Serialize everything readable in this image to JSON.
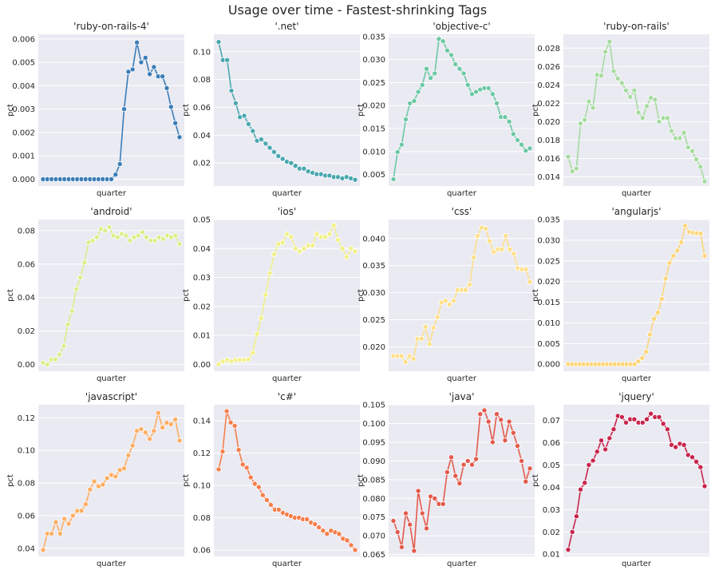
{
  "title": "Usage over time - Fastest-shrinking Tags",
  "chart_data": [
    {
      "type": "line",
      "title": "'ruby-on-rails-4'",
      "xlabel": "quarter",
      "ylabel": "pct",
      "color": "#3a7db8",
      "ylim": [
        -0.00029,
        0.0062
      ],
      "yticks": [
        0,
        0.001,
        0.002,
        0.003,
        0.004,
        0.005,
        0.006
      ],
      "ytick_labels": [
        "0.000",
        "0.001",
        "0.002",
        "0.003",
        "0.004",
        "0.005",
        "0.006"
      ],
      "values": [
        0,
        0,
        0,
        0,
        0,
        0,
        0,
        0,
        0,
        0,
        0,
        0,
        0,
        0,
        0,
        0,
        0,
        0.0002,
        0.00065,
        0.003,
        0.0046,
        0.0047,
        0.00585,
        0.005,
        0.0052,
        0.0045,
        0.0048,
        0.0044,
        0.0044,
        0.0039,
        0.0031,
        0.0024,
        0.0018
      ]
    },
    {
      "type": "line",
      "title": "'.net'",
      "xlabel": "quarter",
      "ylabel": "pct",
      "color": "#4aa7b0",
      "ylim": [
        0.0035,
        0.1125
      ],
      "yticks": [
        0.02,
        0.04,
        0.06,
        0.08,
        0.1
      ],
      "ytick_labels": [
        "0.02",
        "0.04",
        "0.06",
        "0.08",
        "0.10"
      ],
      "values": [
        0.107,
        0.094,
        0.094,
        0.072,
        0.063,
        0.053,
        0.054,
        0.048,
        0.043,
        0.036,
        0.037,
        0.034,
        0.031,
        0.028,
        0.025,
        0.023,
        0.021,
        0.02,
        0.018,
        0.016,
        0.016,
        0.014,
        0.013,
        0.012,
        0.012,
        0.011,
        0.011,
        0.01,
        0.01,
        0.009,
        0.01,
        0.009,
        0.008
      ]
    },
    {
      "type": "line",
      "title": "'objective-c'",
      "xlabel": "quarter",
      "ylabel": "pct",
      "color": "#6cc8a4",
      "ylim": [
        0.0025,
        0.0355
      ],
      "yticks": [
        0.005,
        0.01,
        0.015,
        0.02,
        0.025,
        0.03,
        0.035
      ],
      "ytick_labels": [
        "0.005",
        "0.010",
        "0.015",
        "0.020",
        "0.025",
        "0.030",
        "0.035"
      ],
      "values": [
        0.004,
        0.0099,
        0.0115,
        0.017,
        0.0205,
        0.021,
        0.023,
        0.0245,
        0.028,
        0.026,
        0.027,
        0.0345,
        0.034,
        0.032,
        0.031,
        0.029,
        0.028,
        0.027,
        0.0245,
        0.0225,
        0.023,
        0.0235,
        0.0238,
        0.0238,
        0.0225,
        0.0205,
        0.0175,
        0.0175,
        0.0165,
        0.0138,
        0.0125,
        0.0115,
        0.0102,
        0.0107
      ]
    },
    {
      "type": "line",
      "title": "'ruby-on-rails'",
      "xlabel": "quarter",
      "ylabel": "pct",
      "color": "#a6dba0",
      "ylim": [
        0.013,
        0.0295
      ],
      "yticks": [
        0.014,
        0.016,
        0.018,
        0.02,
        0.022,
        0.024,
        0.026,
        0.028
      ],
      "ytick_labels": [
        "0.014",
        "0.016",
        "0.018",
        "0.020",
        "0.022",
        "0.024",
        "0.026",
        "0.028"
      ],
      "values": [
        0.0162,
        0.0146,
        0.0149,
        0.0198,
        0.0202,
        0.0222,
        0.0215,
        0.0251,
        0.025,
        0.0276,
        0.0287,
        0.0255,
        0.0247,
        0.0242,
        0.0234,
        0.0227,
        0.0234,
        0.021,
        0.0204,
        0.0217,
        0.0226,
        0.0224,
        0.02,
        0.0204,
        0.0204,
        0.019,
        0.0182,
        0.0182,
        0.0188,
        0.0172,
        0.0168,
        0.0159,
        0.0151,
        0.0135
      ]
    },
    {
      "type": "line",
      "title": "'android'",
      "xlabel": "quarter",
      "ylabel": "pct",
      "color": "#d9ef8b",
      "ylim": [
        -0.004,
        0.0866
      ],
      "yticks": [
        0,
        0.02,
        0.04,
        0.06,
        0.08
      ],
      "ytick_labels": [
        "0.00",
        "0.02",
        "0.04",
        "0.06",
        "0.08"
      ],
      "values": [
        0.001,
        0,
        0.003,
        0.003,
        0.006,
        0.011,
        0.024,
        0.032,
        0.045,
        0.052,
        0.061,
        0.073,
        0.074,
        0.076,
        0.081,
        0.08,
        0.082,
        0.077,
        0.076,
        0.078,
        0.077,
        0.074,
        0.076,
        0.077,
        0.079,
        0.076,
        0.074,
        0.074,
        0.076,
        0.075,
        0.077,
        0.076,
        0.077,
        0.072
      ]
    },
    {
      "type": "line",
      "title": "'ios'",
      "xlabel": "quarter",
      "ylabel": "pct",
      "color": "#f1f08a",
      "ylim": [
        -0.0024,
        0.05
      ],
      "yticks": [
        0,
        0.01,
        0.02,
        0.03,
        0.04,
        0.05
      ],
      "ytick_labels": [
        "0.00",
        "0.01",
        "0.02",
        "0.03",
        "0.04",
        "0.05"
      ],
      "values": [
        0,
        0.001,
        0.0015,
        0.001,
        0.0015,
        0.0015,
        0.0015,
        0.0017,
        0.004,
        0.0105,
        0.016,
        0.024,
        0.0315,
        0.038,
        0.0415,
        0.042,
        0.045,
        0.044,
        0.04,
        0.039,
        0.04,
        0.041,
        0.041,
        0.045,
        0.044,
        0.044,
        0.045,
        0.048,
        0.043,
        0.04,
        0.037,
        0.04,
        0.039
      ]
    },
    {
      "type": "line",
      "title": "'css'",
      "xlabel": "quarter",
      "ylabel": "pct",
      "color": "#fee08b",
      "ylim": [
        0.0155,
        0.0435
      ],
      "yticks": [
        0.02,
        0.025,
        0.03,
        0.035,
        0.04
      ],
      "ytick_labels": [
        "0.020",
        "0.025",
        "0.030",
        "0.035",
        "0.040"
      ],
      "values": [
        0.0183,
        0.0183,
        0.0183,
        0.0172,
        0.0183,
        0.0178,
        0.0215,
        0.0215,
        0.0237,
        0.0205,
        0.0235,
        0.0255,
        0.0282,
        0.0285,
        0.0278,
        0.0285,
        0.0305,
        0.0305,
        0.0305,
        0.0315,
        0.0365,
        0.0405,
        0.042,
        0.0418,
        0.0395,
        0.0375,
        0.038,
        0.038,
        0.0405,
        0.038,
        0.0372,
        0.0345,
        0.0343,
        0.0343,
        0.032
      ]
    },
    {
      "type": "line",
      "title": "'angularjs'",
      "xlabel": "quarter",
      "ylabel": "pct",
      "color": "#fdd67a",
      "ylim": [
        -0.0017,
        0.035
      ],
      "yticks": [
        0,
        0.005,
        0.01,
        0.015,
        0.02,
        0.025,
        0.03,
        0.035
      ],
      "ytick_labels": [
        "0.000",
        "0.005",
        "0.010",
        "0.015",
        "0.020",
        "0.025",
        "0.030",
        "0.035"
      ],
      "values": [
        0,
        0,
        0,
        0,
        0,
        0,
        0,
        0,
        0,
        0,
        0,
        0,
        0,
        0,
        0,
        0,
        0,
        0,
        0.0007,
        0.0015,
        0.003,
        0.0072,
        0.011,
        0.0125,
        0.0158,
        0.0207,
        0.0245,
        0.0262,
        0.0275,
        0.0295,
        0.0335,
        0.032,
        0.0318,
        0.0317,
        0.0316,
        0.0262
      ]
    },
    {
      "type": "line",
      "title": "'javascript'",
      "xlabel": "quarter",
      "ylabel": "pct",
      "color": "#fdae61",
      "ylim": [
        0.035,
        0.128
      ],
      "yticks": [
        0.04,
        0.06,
        0.08,
        0.1,
        0.12
      ],
      "ytick_labels": [
        "0.04",
        "0.06",
        "0.08",
        "0.10",
        "0.12"
      ],
      "values": [
        0.039,
        0.049,
        0.049,
        0.056,
        0.049,
        0.058,
        0.055,
        0.06,
        0.063,
        0.063,
        0.067,
        0.076,
        0.081,
        0.078,
        0.079,
        0.083,
        0.085,
        0.084,
        0.088,
        0.089,
        0.097,
        0.103,
        0.112,
        0.113,
        0.111,
        0.107,
        0.112,
        0.123,
        0.114,
        0.117,
        0.116,
        0.119,
        0.106
      ]
    },
    {
      "type": "line",
      "title": "'c#'",
      "xlabel": "quarter",
      "ylabel": "pct",
      "color": "#f67e4b",
      "ylim": [
        0.056,
        0.15
      ],
      "yticks": [
        0.06,
        0.08,
        0.1,
        0.12,
        0.14
      ],
      "ytick_labels": [
        "0.06",
        "0.08",
        "0.10",
        "0.12",
        "0.14"
      ],
      "values": [
        0.11,
        0.121,
        0.146,
        0.139,
        0.137,
        0.122,
        0.113,
        0.111,
        0.105,
        0.101,
        0.099,
        0.094,
        0.091,
        0.088,
        0.085,
        0.085,
        0.083,
        0.082,
        0.081,
        0.08,
        0.08,
        0.079,
        0.079,
        0.077,
        0.076,
        0.074,
        0.072,
        0.07,
        0.072,
        0.071,
        0.07,
        0.067,
        0.066,
        0.063,
        0.06
      ]
    },
    {
      "type": "line",
      "title": "'java'",
      "xlabel": "quarter",
      "ylabel": "pct",
      "color": "#e35a4b",
      "ylim": [
        0.0645,
        0.105
      ],
      "yticks": [
        0.065,
        0.07,
        0.075,
        0.08,
        0.085,
        0.09,
        0.095,
        0.1,
        0.105
      ],
      "ytick_labels": [
        "0.065",
        "0.070",
        "0.075",
        "0.080",
        "0.085",
        "0.090",
        "0.095",
        "0.100",
        "0.105"
      ],
      "values": [
        0.074,
        0.071,
        0.067,
        0.076,
        0.073,
        0.066,
        0.082,
        0.076,
        0.072,
        0.0805,
        0.08,
        0.0785,
        0.0785,
        0.087,
        0.091,
        0.086,
        0.084,
        0.089,
        0.09,
        0.089,
        0.0905,
        0.1025,
        0.1035,
        0.1005,
        0.095,
        0.1025,
        0.101,
        0.0955,
        0.1005,
        0.0975,
        0.094,
        0.09,
        0.0845,
        0.088
      ]
    },
    {
      "type": "line",
      "title": "'jquery'",
      "xlabel": "quarter",
      "ylabel": "pct",
      "color": "#c8254c",
      "ylim": [
        0.009,
        0.077
      ],
      "yticks": [
        0.01,
        0.02,
        0.03,
        0.04,
        0.05,
        0.06,
        0.07
      ],
      "ytick_labels": [
        "0.01",
        "0.02",
        "0.03",
        "0.04",
        "0.05",
        "0.06",
        "0.07"
      ],
      "values": [
        0.012,
        0.02,
        0.027,
        0.039,
        0.042,
        0.05,
        0.052,
        0.056,
        0.061,
        0.057,
        0.062,
        0.066,
        0.072,
        0.0715,
        0.069,
        0.0705,
        0.0705,
        0.069,
        0.069,
        0.0705,
        0.073,
        0.0715,
        0.0715,
        0.0685,
        0.066,
        0.059,
        0.058,
        0.0595,
        0.059,
        0.0545,
        0.0535,
        0.0515,
        0.049,
        0.0405
      ]
    }
  ]
}
